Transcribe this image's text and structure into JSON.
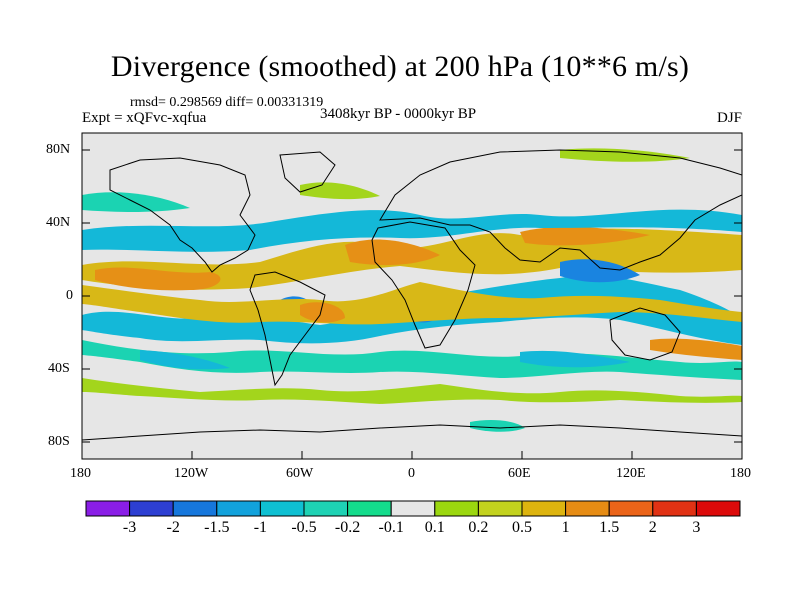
{
  "title": "Divergence (smoothed) at 200 hPa (10**6 m/s)",
  "stats": "rmsd= 0.298569 diff= 0.00331319",
  "expt": "Expt = xQFvc-xqfua",
  "period": "3408kyr BP - 0000kyr BP",
  "season": "DJF",
  "lat_labels": [
    "80N",
    "40N",
    "0",
    "40S",
    "80S"
  ],
  "lon_labels": [
    "180",
    "120W",
    "60W",
    "0",
    "60E",
    "120E",
    "180"
  ],
  "colorbar": {
    "labels": [
      "-3",
      "-2",
      "-1.5",
      "-1",
      "-0.5",
      "-0.2",
      "-0.1",
      "0.1",
      "0.2",
      "0.5",
      "1",
      "1.5",
      "2",
      "3"
    ],
    "colors": [
      "#8a1ee6",
      "#2d3fd2",
      "#1677dc",
      "#12a2dc",
      "#0fc0d2",
      "#1ed2b4",
      "#14dc8c",
      "#e6e6e6",
      "#9bd70f",
      "#c3d21e",
      "#ddb40f",
      "#e68c14",
      "#eb6419",
      "#e13214",
      "#dc0a0a"
    ]
  },
  "palette": {
    "neutral": "#e6e6e6",
    "pos_weak": "#a3d51c",
    "pos_mid": "#d8b817",
    "pos_strong": "#e69016",
    "neg_weak": "#1bd3b2",
    "neg_mid": "#14b8d8",
    "neg_strong": "#1a84e0",
    "neg_max": "#2a55d8"
  }
}
